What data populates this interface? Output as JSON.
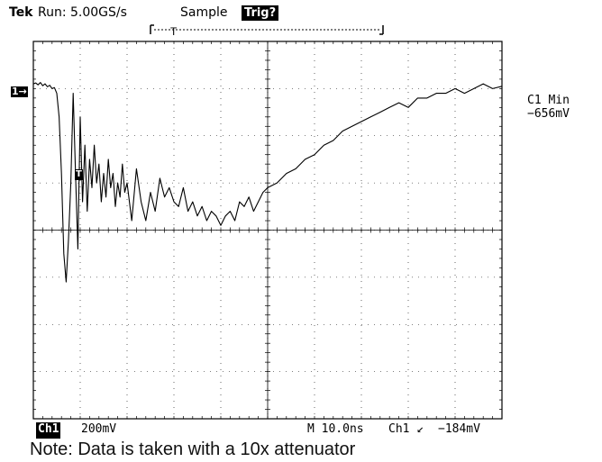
{
  "header": {
    "brand": "Tek",
    "run_status": "Run: 5.00GS/s",
    "acquire_mode": "Sample",
    "trigger_state": "Trig?"
  },
  "markers": {
    "channel": "1",
    "trigger": "T"
  },
  "measurement": {
    "label": "C1 Min",
    "value": "−656mV"
  },
  "footer": {
    "channel_tag": "Ch1",
    "volts_per_div": "200mV",
    "timebase": "M 10.0ns",
    "trigger_source": "Ch1",
    "trigger_slope": "↙",
    "trigger_level": "−184mV"
  },
  "note": "Note: Data is taken with a 10x attenuator",
  "colors": {
    "trace": "#000000",
    "grid": "#000000",
    "background": "#ffffff"
  },
  "chart_data": {
    "type": "line",
    "xlim": [
      0,
      10
    ],
    "ylim": [
      -4,
      4
    ],
    "xlabel": "",
    "ylabel": "",
    "grid": true,
    "series": [
      {
        "x": [
          0,
          0.05,
          0.1,
          0.15,
          0.2,
          0.25,
          0.3,
          0.35,
          0.4,
          0.45,
          0.5,
          0.55,
          0.6,
          0.65,
          0.7,
          0.75,
          0.8,
          0.85,
          0.9,
          0.95,
          1.0,
          1.05,
          1.1,
          1.15,
          1.2,
          1.25,
          1.3,
          1.35,
          1.4,
          1.45,
          1.5,
          1.55,
          1.6,
          1.65,
          1.7,
          1.75,
          1.8,
          1.85,
          1.9,
          1.95,
          2.0,
          2.1,
          2.2,
          2.3,
          2.4,
          2.5,
          2.6,
          2.7,
          2.8,
          2.9,
          3.0,
          3.1,
          3.2,
          3.3,
          3.4,
          3.5,
          3.6,
          3.7,
          3.8,
          3.9,
          4.0,
          4.1,
          4.2,
          4.3,
          4.4,
          4.5,
          4.6,
          4.7,
          4.8,
          4.9,
          5.0,
          5.2,
          5.4,
          5.6,
          5.8,
          6.0,
          6.2,
          6.4,
          6.6,
          6.8,
          7.0,
          7.2,
          7.4,
          7.6,
          7.8,
          8.0,
          8.2,
          8.4,
          8.6,
          8.8,
          9.0,
          9.2,
          9.4,
          9.6,
          9.8,
          10.0
        ],
        "values": [
          3.1,
          3.12,
          3.08,
          3.13,
          3.06,
          3.1,
          3.04,
          3.07,
          3.0,
          3.02,
          2.9,
          2.4,
          1.2,
          -0.5,
          -1.1,
          -0.2,
          1.0,
          2.9,
          1.2,
          -0.4,
          2.4,
          0.6,
          1.8,
          0.4,
          1.5,
          0.9,
          1.8,
          1.0,
          1.4,
          0.6,
          1.2,
          0.7,
          1.5,
          0.9,
          1.2,
          0.5,
          1.0,
          0.7,
          1.4,
          0.8,
          1.0,
          0.2,
          1.3,
          0.6,
          0.2,
          0.8,
          0.4,
          1.1,
          0.7,
          0.9,
          0.6,
          0.5,
          0.9,
          0.4,
          0.6,
          0.3,
          0.5,
          0.2,
          0.4,
          0.3,
          0.1,
          0.3,
          0.4,
          0.2,
          0.6,
          0.5,
          0.7,
          0.4,
          0.6,
          0.8,
          0.9,
          1.0,
          1.2,
          1.3,
          1.5,
          1.6,
          1.8,
          1.9,
          2.1,
          2.2,
          2.3,
          2.4,
          2.5,
          2.6,
          2.7,
          2.6,
          2.8,
          2.8,
          2.9,
          2.9,
          3.0,
          2.9,
          3.0,
          3.1,
          3.0,
          3.05
        ]
      }
    ]
  }
}
